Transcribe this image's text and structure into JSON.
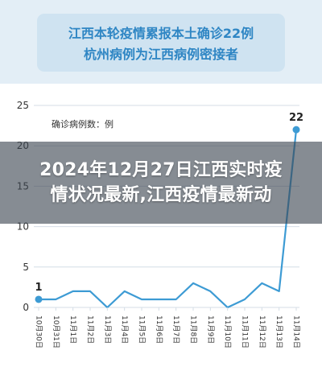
{
  "headline": {
    "line1": "江西本轮疫情累报本土确诊22例",
    "line2": "杭州病例为江西病例密接者"
  },
  "overlay": {
    "line1": "2024年12月27日江西实时疫",
    "line2": "情状况最新,江西疫情最新动"
  },
  "colors": {
    "accent": "#3d9bd4",
    "headline_bg": "#cfe3f1",
    "headline_text": "#2f86c4",
    "grid": "#d4dde6",
    "axis_text": "#333333"
  },
  "chart_data": {
    "type": "line",
    "legend": "确诊病例数：例",
    "categories": [
      "10月30日",
      "10月31日",
      "11月1日",
      "11月2日",
      "11月3日",
      "11月4日",
      "11月5日",
      "11月6日",
      "11月7日",
      "11月8日",
      "11月9日",
      "11月10日",
      "11月11日",
      "11月12日",
      "11月13日",
      "11月14日"
    ],
    "series": [
      {
        "values": [
          1,
          1,
          2,
          2,
          0,
          2,
          1,
          1,
          1,
          3,
          2,
          0,
          1,
          3,
          2,
          22
        ]
      }
    ],
    "y_ticks": [
      0,
      5,
      10,
      15,
      20,
      25
    ],
    "ylim": [
      0,
      25
    ],
    "grid": "horizontal",
    "data_labels": [
      {
        "index": 0,
        "text": "1"
      },
      {
        "index": 15,
        "text": "22"
      }
    ]
  }
}
